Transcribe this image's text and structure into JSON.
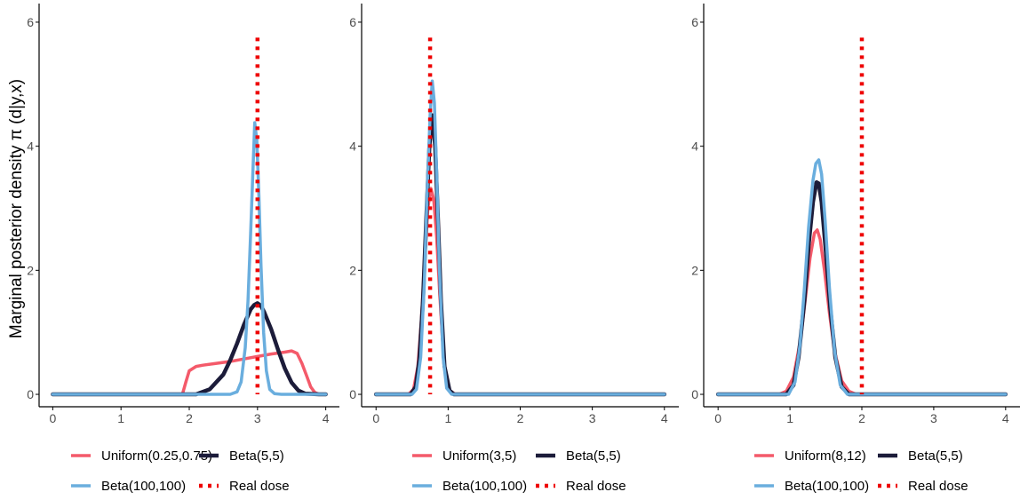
{
  "ylabel": "Marginal posterior density π (d|y,x)",
  "colors": {
    "uniform": "#f45a6a",
    "beta55": "#1c1c3a",
    "beta100": "#6aaede",
    "real": "#ee0000",
    "axis": "#000000",
    "tick_text": "#4d4d4d"
  },
  "chart_data": [
    {
      "type": "line",
      "xlim": [
        -0.2,
        4.2
      ],
      "ylim": [
        -0.2,
        6.3
      ],
      "xticks": [
        0,
        1,
        2,
        3,
        4
      ],
      "yticks": [
        0,
        2,
        4,
        6
      ],
      "grid": false,
      "legend_position": "bottom",
      "real_dose": 3.0,
      "series": [
        {
          "name": "Uniform(0.25,0.75)",
          "style": "uniform",
          "x": [
            0,
            1.9,
            1.95,
            2.0,
            2.1,
            2.2,
            2.4,
            2.6,
            2.8,
            3.0,
            3.2,
            3.4,
            3.5,
            3.58,
            3.65,
            3.72,
            3.78,
            3.84,
            3.9,
            4.0
          ],
          "y": [
            0,
            0,
            0.2,
            0.38,
            0.45,
            0.47,
            0.5,
            0.53,
            0.57,
            0.61,
            0.65,
            0.68,
            0.7,
            0.66,
            0.5,
            0.3,
            0.12,
            0.03,
            0,
            0
          ]
        },
        {
          "name": "Beta(5,5)",
          "style": "beta55",
          "x": [
            0,
            2.1,
            2.3,
            2.5,
            2.6,
            2.7,
            2.8,
            2.9,
            2.95,
            3.0,
            3.05,
            3.1,
            3.2,
            3.3,
            3.4,
            3.5,
            3.6,
            3.7,
            3.9,
            4.0
          ],
          "y": [
            0,
            0,
            0.08,
            0.32,
            0.55,
            0.82,
            1.12,
            1.37,
            1.44,
            1.47,
            1.43,
            1.32,
            1.05,
            0.72,
            0.42,
            0.19,
            0.06,
            0.01,
            0,
            0
          ]
        },
        {
          "name": "Beta(100,100)",
          "style": "beta100",
          "x": [
            0,
            2.6,
            2.7,
            2.76,
            2.82,
            2.86,
            2.9,
            2.93,
            2.96,
            2.99,
            3.02,
            3.05,
            3.09,
            3.13,
            3.18,
            3.25,
            3.35,
            4.0
          ],
          "y": [
            0,
            0,
            0.04,
            0.2,
            0.75,
            1.5,
            2.6,
            3.5,
            4.38,
            4.1,
            3.2,
            2.1,
            1.0,
            0.38,
            0.08,
            0.01,
            0,
            0
          ]
        }
      ]
    },
    {
      "type": "line",
      "xlim": [
        -0.2,
        4.2
      ],
      "ylim": [
        -0.2,
        6.3
      ],
      "xticks": [
        0,
        1,
        2,
        3,
        4
      ],
      "yticks": [
        0,
        2,
        4,
        6
      ],
      "grid": false,
      "legend_position": "bottom",
      "real_dose": 0.75,
      "series": [
        {
          "name": "Uniform(3,5)",
          "style": "uniform",
          "x": [
            0,
            0.45,
            0.52,
            0.58,
            0.63,
            0.68,
            0.72,
            0.76,
            0.8,
            0.84,
            0.88,
            0.92,
            0.96,
            1.02,
            1.1,
            4.0
          ],
          "y": [
            0,
            0,
            0.08,
            0.45,
            1.2,
            2.25,
            3.0,
            3.32,
            3.15,
            2.55,
            1.7,
            0.9,
            0.35,
            0.06,
            0,
            0
          ]
        },
        {
          "name": "Beta(5,5)",
          "style": "beta55",
          "x": [
            0,
            0.48,
            0.55,
            0.6,
            0.65,
            0.7,
            0.74,
            0.78,
            0.82,
            0.86,
            0.9,
            0.95,
            1.02,
            1.08,
            4.0
          ],
          "y": [
            0,
            0,
            0.12,
            0.55,
            1.5,
            2.9,
            4.0,
            4.5,
            4.0,
            2.8,
            1.5,
            0.45,
            0.06,
            0,
            0
          ]
        },
        {
          "name": "Beta(100,100)",
          "style": "beta100",
          "x": [
            0,
            0.5,
            0.56,
            0.62,
            0.67,
            0.71,
            0.75,
            0.78,
            0.81,
            0.84,
            0.88,
            0.93,
            0.98,
            1.05,
            4.0
          ],
          "y": [
            0,
            0,
            0.08,
            0.6,
            1.8,
            3.3,
            4.5,
            5.05,
            4.7,
            3.6,
            2.0,
            0.6,
            0.1,
            0,
            0
          ]
        }
      ]
    },
    {
      "type": "line",
      "xlim": [
        -0.2,
        4.2
      ],
      "ylim": [
        -0.2,
        6.3
      ],
      "xticks": [
        0,
        1,
        2,
        3,
        4
      ],
      "yticks": [
        0,
        2,
        4,
        6
      ],
      "grid": false,
      "legend_position": "bottom",
      "real_dose": 2.0,
      "series": [
        {
          "name": "Uniform(8,12)",
          "style": "uniform",
          "x": [
            0,
            0.85,
            0.95,
            1.05,
            1.15,
            1.22,
            1.28,
            1.34,
            1.38,
            1.42,
            1.48,
            1.55,
            1.62,
            1.72,
            1.82,
            1.92,
            4.0
          ],
          "y": [
            0,
            0,
            0.05,
            0.28,
            0.9,
            1.6,
            2.2,
            2.6,
            2.65,
            2.5,
            2.0,
            1.3,
            0.7,
            0.22,
            0.05,
            0,
            0
          ]
        },
        {
          "name": "Beta(5,5)",
          "style": "beta55",
          "x": [
            0,
            0.95,
            1.05,
            1.12,
            1.2,
            1.26,
            1.32,
            1.37,
            1.4,
            1.44,
            1.5,
            1.56,
            1.63,
            1.72,
            1.82,
            4.0
          ],
          "y": [
            0,
            0,
            0.15,
            0.6,
            1.5,
            2.4,
            3.1,
            3.42,
            3.4,
            3.1,
            2.3,
            1.4,
            0.6,
            0.12,
            0,
            0
          ]
        },
        {
          "name": "Beta(100,100)",
          "style": "beta100",
          "x": [
            0,
            0.98,
            1.07,
            1.14,
            1.2,
            1.26,
            1.32,
            1.36,
            1.4,
            1.44,
            1.49,
            1.55,
            1.62,
            1.7,
            1.8,
            4.0
          ],
          "y": [
            0,
            0,
            0.2,
            0.8,
            1.7,
            2.7,
            3.45,
            3.72,
            3.78,
            3.55,
            2.8,
            1.7,
            0.7,
            0.15,
            0,
            0
          ]
        }
      ]
    }
  ],
  "legends": [
    {
      "items": [
        {
          "label": "Uniform(0.25,0.75)",
          "style": "uniform"
        },
        {
          "label": "Beta(5,5)",
          "style": "beta55"
        },
        {
          "label": "Beta(100,100)",
          "style": "beta100"
        },
        {
          "label": "Real dose",
          "style": "real"
        }
      ]
    },
    {
      "items": [
        {
          "label": "Uniform(3,5)",
          "style": "uniform"
        },
        {
          "label": "Beta(5,5)",
          "style": "beta55"
        },
        {
          "label": "Beta(100,100)",
          "style": "beta100"
        },
        {
          "label": "Real dose",
          "style": "real"
        }
      ]
    },
    {
      "items": [
        {
          "label": "Uniform(8,12)",
          "style": "uniform"
        },
        {
          "label": "Beta(5,5)",
          "style": "beta55"
        },
        {
          "label": "Beta(100,100)",
          "style": "beta100"
        },
        {
          "label": "Real dose",
          "style": "real"
        }
      ]
    }
  ]
}
